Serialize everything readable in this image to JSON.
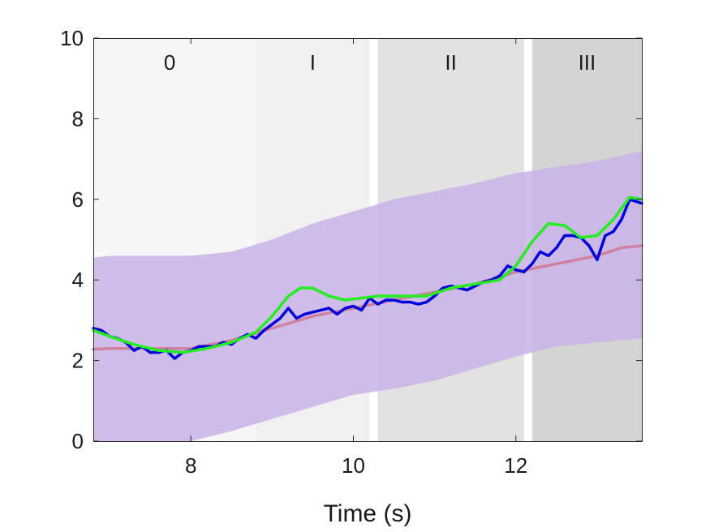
{
  "chart_data": {
    "type": "line",
    "xlabel": "Time (s)",
    "ylabel": "",
    "xlim": [
      6.8,
      13.55
    ],
    "ylim": [
      0,
      10
    ],
    "x_ticks": [
      8,
      10,
      12
    ],
    "y_ticks": [
      0,
      2,
      4,
      6,
      8,
      10
    ],
    "grid": false,
    "legend": "none",
    "phases": [
      {
        "label": "0",
        "x_start": 6.8,
        "x_end": 8.8,
        "color": "#f7f7f7"
      },
      {
        "label": "I",
        "x_start": 8.8,
        "x_end": 10.2,
        "color": "#f0f0f0"
      },
      {
        "label": "II",
        "x_start": 10.3,
        "x_end": 12.1,
        "color": "#e2e2e2"
      },
      {
        "label": "III",
        "x_start": 12.2,
        "x_end": 13.55,
        "color": "#d4d4d4"
      }
    ],
    "band": {
      "color": "#c9b3e6",
      "x": [
        6.8,
        7.0,
        7.5,
        8.0,
        8.5,
        9.0,
        9.5,
        10.0,
        10.5,
        11.0,
        11.5,
        12.0,
        12.5,
        13.0,
        13.55
      ],
      "upper": [
        4.55,
        4.6,
        4.6,
        4.6,
        4.7,
        5.0,
        5.4,
        5.7,
        6.0,
        6.2,
        6.4,
        6.65,
        6.8,
        6.95,
        7.2
      ],
      "lower": [
        0.0,
        0.0,
        0.0,
        0.0,
        0.25,
        0.55,
        0.85,
        1.15,
        1.3,
        1.5,
        1.8,
        2.1,
        2.35,
        2.45,
        2.55
      ]
    },
    "series": [
      {
        "color": "#d080a0",
        "x": [
          6.8,
          7.0,
          7.5,
          8.0,
          8.5,
          9.0,
          9.5,
          10.0,
          10.5,
          11.0,
          11.5,
          12.0,
          12.5,
          13.0,
          13.3,
          13.55
        ],
        "y": [
          2.28,
          2.3,
          2.3,
          2.3,
          2.5,
          2.8,
          3.1,
          3.3,
          3.5,
          3.7,
          3.9,
          4.2,
          4.4,
          4.6,
          4.8,
          4.85
        ]
      },
      {
        "color": "#0000dd",
        "x": [
          6.8,
          6.9,
          7.0,
          7.1,
          7.2,
          7.3,
          7.4,
          7.5,
          7.6,
          7.7,
          7.8,
          7.9,
          8.0,
          8.1,
          8.2,
          8.3,
          8.4,
          8.5,
          8.6,
          8.7,
          8.8,
          8.9,
          9.0,
          9.1,
          9.2,
          9.3,
          9.4,
          9.5,
          9.6,
          9.7,
          9.8,
          9.9,
          10.0,
          10.1,
          10.2,
          10.3,
          10.4,
          10.5,
          10.6,
          10.7,
          10.8,
          10.9,
          11.0,
          11.1,
          11.2,
          11.3,
          11.4,
          11.5,
          11.6,
          11.7,
          11.8,
          11.9,
          12.0,
          12.1,
          12.2,
          12.3,
          12.4,
          12.5,
          12.6,
          12.7,
          12.8,
          12.9,
          13.0,
          13.1,
          13.2,
          13.3,
          13.4,
          13.55
        ],
        "y": [
          2.8,
          2.75,
          2.6,
          2.55,
          2.45,
          2.25,
          2.35,
          2.2,
          2.2,
          2.25,
          2.05,
          2.2,
          2.25,
          2.35,
          2.35,
          2.35,
          2.45,
          2.4,
          2.55,
          2.65,
          2.55,
          2.75,
          2.9,
          3.05,
          3.3,
          3.05,
          3.15,
          3.2,
          3.25,
          3.3,
          3.15,
          3.3,
          3.35,
          3.25,
          3.55,
          3.4,
          3.5,
          3.5,
          3.45,
          3.45,
          3.4,
          3.45,
          3.6,
          3.8,
          3.85,
          3.8,
          3.75,
          3.85,
          3.95,
          4.0,
          4.1,
          4.35,
          4.25,
          4.2,
          4.4,
          4.7,
          4.6,
          4.8,
          5.1,
          5.1,
          5.05,
          4.85,
          4.5,
          5.1,
          5.2,
          5.5,
          6.0,
          5.9
        ]
      },
      {
        "color": "#22ee22",
        "x": [
          6.8,
          7.0,
          7.3,
          7.6,
          7.9,
          8.2,
          8.5,
          8.8,
          9.0,
          9.2,
          9.35,
          9.5,
          9.7,
          9.9,
          10.1,
          10.3,
          10.6,
          10.9,
          11.2,
          11.5,
          11.8,
          12.0,
          12.2,
          12.4,
          12.6,
          12.8,
          13.0,
          13.2,
          13.4,
          13.55
        ],
        "y": [
          2.75,
          2.6,
          2.4,
          2.25,
          2.2,
          2.3,
          2.45,
          2.7,
          3.1,
          3.6,
          3.8,
          3.8,
          3.6,
          3.5,
          3.55,
          3.6,
          3.6,
          3.6,
          3.8,
          3.9,
          4.0,
          4.35,
          4.95,
          5.4,
          5.35,
          5.05,
          5.1,
          5.5,
          6.05,
          6.0
        ]
      }
    ]
  }
}
